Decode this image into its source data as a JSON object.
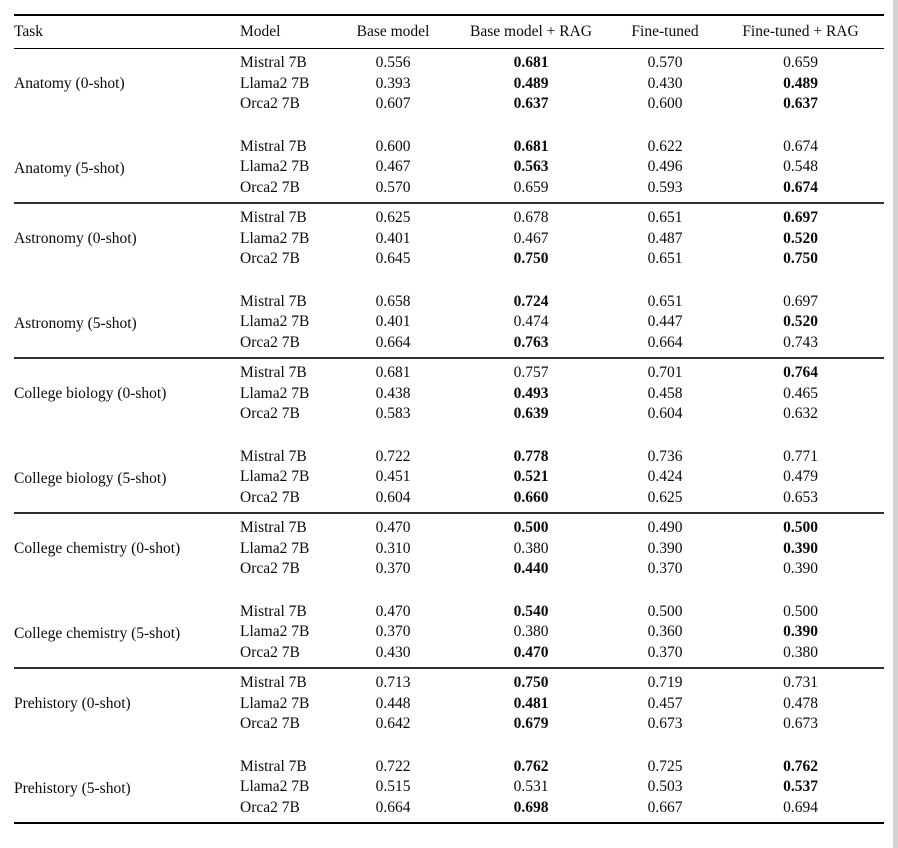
{
  "colors": {
    "rule": "#000000",
    "section_rule": "#2f2f2f",
    "text": "#0b0b0b",
    "scan_edge": "#d2d2d2"
  },
  "table": {
    "columns": [
      "Task",
      "Model",
      "Base model",
      "Base model + RAG",
      "Fine-tuned",
      "Fine-tuned + RAG"
    ],
    "sections": [
      {
        "blocks": [
          {
            "task": "Anatomy (0-shot)",
            "rows": [
              {
                "model": "Mistral 7B",
                "values": [
                  "0.556",
                  "0.681",
                  "0.570",
                  "0.659"
                ],
                "bold": [
                  false,
                  true,
                  false,
                  false
                ]
              },
              {
                "model": "Llama2 7B",
                "values": [
                  "0.393",
                  "0.489",
                  "0.430",
                  "0.489"
                ],
                "bold": [
                  false,
                  true,
                  false,
                  true
                ]
              },
              {
                "model": "Orca2 7B",
                "values": [
                  "0.607",
                  "0.637",
                  "0.600",
                  "0.637"
                ],
                "bold": [
                  false,
                  true,
                  false,
                  true
                ]
              }
            ]
          },
          {
            "task": "Anatomy (5-shot)",
            "rows": [
              {
                "model": "Mistral 7B",
                "values": [
                  "0.600",
                  "0.681",
                  "0.622",
                  "0.674"
                ],
                "bold": [
                  false,
                  true,
                  false,
                  false
                ]
              },
              {
                "model": "Llama2 7B",
                "values": [
                  "0.467",
                  "0.563",
                  "0.496",
                  "0.548"
                ],
                "bold": [
                  false,
                  true,
                  false,
                  false
                ]
              },
              {
                "model": "Orca2 7B",
                "values": [
                  "0.570",
                  "0.659",
                  "0.593",
                  "0.674"
                ],
                "bold": [
                  false,
                  false,
                  false,
                  true
                ]
              }
            ]
          }
        ]
      },
      {
        "blocks": [
          {
            "task": "Astronomy (0-shot)",
            "rows": [
              {
                "model": "Mistral 7B",
                "values": [
                  "0.625",
                  "0.678",
                  "0.651",
                  "0.697"
                ],
                "bold": [
                  false,
                  false,
                  false,
                  true
                ]
              },
              {
                "model": "Llama2 7B",
                "values": [
                  "0.401",
                  "0.467",
                  "0.487",
                  "0.520"
                ],
                "bold": [
                  false,
                  false,
                  false,
                  true
                ]
              },
              {
                "model": "Orca2 7B",
                "values": [
                  "0.645",
                  "0.750",
                  "0.651",
                  "0.750"
                ],
                "bold": [
                  false,
                  true,
                  false,
                  true
                ]
              }
            ]
          },
          {
            "task": "Astronomy (5-shot)",
            "rows": [
              {
                "model": "Mistral 7B",
                "values": [
                  "0.658",
                  "0.724",
                  "0.651",
                  "0.697"
                ],
                "bold": [
                  false,
                  true,
                  false,
                  false
                ]
              },
              {
                "model": "Llama2 7B",
                "values": [
                  "0.401",
                  "0.474",
                  "0.447",
                  "0.520"
                ],
                "bold": [
                  false,
                  false,
                  false,
                  true
                ]
              },
              {
                "model": "Orca2 7B",
                "values": [
                  "0.664",
                  "0.763",
                  "0.664",
                  "0.743"
                ],
                "bold": [
                  false,
                  true,
                  false,
                  false
                ]
              }
            ]
          }
        ]
      },
      {
        "blocks": [
          {
            "task": "College biology (0-shot)",
            "rows": [
              {
                "model": "Mistral 7B",
                "values": [
                  "0.681",
                  "0.757",
                  "0.701",
                  "0.764"
                ],
                "bold": [
                  false,
                  false,
                  false,
                  true
                ]
              },
              {
                "model": "Llama2 7B",
                "values": [
                  "0.438",
                  "0.493",
                  "0.458",
                  "0.465"
                ],
                "bold": [
                  false,
                  true,
                  false,
                  false
                ]
              },
              {
                "model": "Orca2 7B",
                "values": [
                  "0.583",
                  "0.639",
                  "0.604",
                  "0.632"
                ],
                "bold": [
                  false,
                  true,
                  false,
                  false
                ]
              }
            ]
          },
          {
            "task": "College biology (5-shot)",
            "rows": [
              {
                "model": "Mistral 7B",
                "values": [
                  "0.722",
                  "0.778",
                  "0.736",
                  "0.771"
                ],
                "bold": [
                  false,
                  true,
                  false,
                  false
                ]
              },
              {
                "model": "Llama2 7B",
                "values": [
                  "0.451",
                  "0.521",
                  "0.424",
                  "0.479"
                ],
                "bold": [
                  false,
                  true,
                  false,
                  false
                ]
              },
              {
                "model": "Orca2 7B",
                "values": [
                  "0.604",
                  "0.660",
                  "0.625",
                  "0.653"
                ],
                "bold": [
                  false,
                  true,
                  false,
                  false
                ]
              }
            ]
          }
        ]
      },
      {
        "blocks": [
          {
            "task": "College chemistry (0-shot)",
            "rows": [
              {
                "model": "Mistral 7B",
                "values": [
                  "0.470",
                  "0.500",
                  "0.490",
                  "0.500"
                ],
                "bold": [
                  false,
                  true,
                  false,
                  true
                ]
              },
              {
                "model": "Llama2 7B",
                "values": [
                  "0.310",
                  "0.380",
                  "0.390",
                  "0.390"
                ],
                "bold": [
                  false,
                  false,
                  false,
                  true
                ]
              },
              {
                "model": "Orca2 7B",
                "values": [
                  "0.370",
                  "0.440",
                  "0.370",
                  "0.390"
                ],
                "bold": [
                  false,
                  true,
                  false,
                  false
                ]
              }
            ]
          },
          {
            "task": "College chemistry (5-shot)",
            "rows": [
              {
                "model": "Mistral 7B",
                "values": [
                  "0.470",
                  "0.540",
                  "0.500",
                  "0.500"
                ],
                "bold": [
                  false,
                  true,
                  false,
                  false
                ]
              },
              {
                "model": "Llama2 7B",
                "values": [
                  "0.370",
                  "0.380",
                  "0.360",
                  "0.390"
                ],
                "bold": [
                  false,
                  false,
                  false,
                  true
                ]
              },
              {
                "model": "Orca2 7B",
                "values": [
                  "0.430",
                  "0.470",
                  "0.370",
                  "0.380"
                ],
                "bold": [
                  false,
                  true,
                  false,
                  false
                ]
              }
            ]
          }
        ]
      },
      {
        "blocks": [
          {
            "task": "Prehistory (0-shot)",
            "rows": [
              {
                "model": "Mistral 7B",
                "values": [
                  "0.713",
                  "0.750",
                  "0.719",
                  "0.731"
                ],
                "bold": [
                  false,
                  true,
                  false,
                  false
                ]
              },
              {
                "model": "Llama2 7B",
                "values": [
                  "0.448",
                  "0.481",
                  "0.457",
                  "0.478"
                ],
                "bold": [
                  false,
                  true,
                  false,
                  false
                ]
              },
              {
                "model": "Orca2 7B",
                "values": [
                  "0.642",
                  "0.679",
                  "0.673",
                  "0.673"
                ],
                "bold": [
                  false,
                  true,
                  false,
                  false
                ]
              }
            ]
          },
          {
            "task": "Prehistory (5-shot)",
            "rows": [
              {
                "model": "Mistral 7B",
                "values": [
                  "0.722",
                  "0.762",
                  "0.725",
                  "0.762"
                ],
                "bold": [
                  false,
                  true,
                  false,
                  true
                ]
              },
              {
                "model": "Llama2 7B",
                "values": [
                  "0.515",
                  "0.531",
                  "0.503",
                  "0.537"
                ],
                "bold": [
                  false,
                  false,
                  false,
                  true
                ]
              },
              {
                "model": "Orca2 7B",
                "values": [
                  "0.664",
                  "0.698",
                  "0.667",
                  "0.694"
                ],
                "bold": [
                  false,
                  true,
                  false,
                  false
                ]
              }
            ]
          }
        ]
      }
    ]
  }
}
